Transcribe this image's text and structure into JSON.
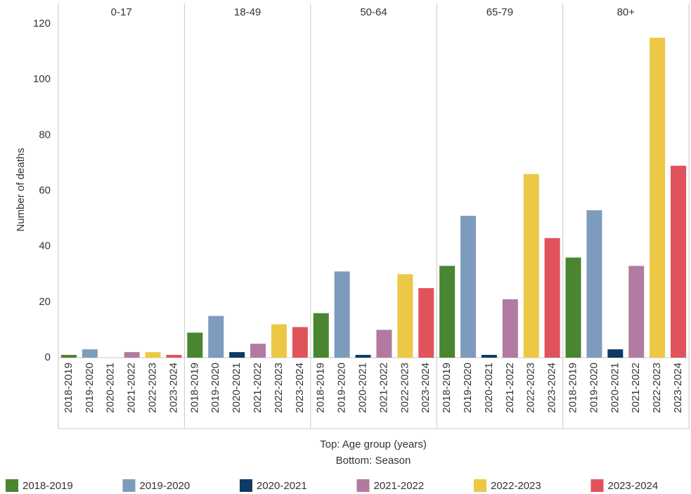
{
  "chart_data": {
    "type": "bar",
    "y_label": "Number of deaths",
    "x_label_top": "Top: Age group (years)",
    "x_label_bottom": "Bottom: Season",
    "categories": [
      "0-17",
      "18-49",
      "50-64",
      "65-79",
      "80+"
    ],
    "series": [
      {
        "name": "2018-2019",
        "color": "#4a8531",
        "values": [
          1,
          9,
          16,
          33,
          36
        ]
      },
      {
        "name": "2019-2020",
        "color": "#7d9bbd",
        "values": [
          3,
          15,
          31,
          51,
          53
        ]
      },
      {
        "name": "2020-2021",
        "color": "#0d3a63",
        "values": [
          0,
          2,
          1,
          1,
          3
        ]
      },
      {
        "name": "2021-2022",
        "color": "#b27aa1",
        "values": [
          2,
          5,
          10,
          21,
          33
        ]
      },
      {
        "name": "2022-2023",
        "color": "#ecc846",
        "values": [
          2,
          12,
          30,
          66,
          115
        ]
      },
      {
        "name": "2023-2024",
        "color": "#e0535a",
        "values": [
          1,
          11,
          25,
          43,
          69
        ]
      }
    ],
    "ylim": [
      0,
      121
    ],
    "yticks": [
      0,
      20,
      40,
      60,
      80,
      100,
      120
    ],
    "grid": false
  }
}
